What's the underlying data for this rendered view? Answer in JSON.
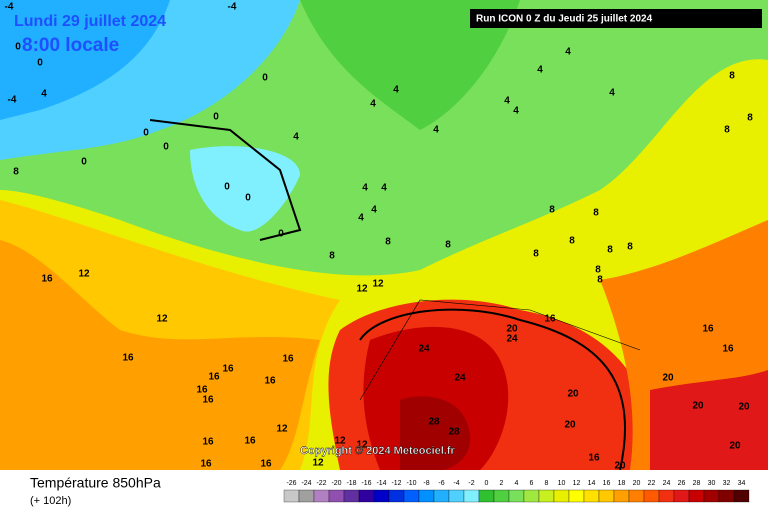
{
  "header": {
    "date": "Lundi 29 juillet 2024",
    "time": "8:00 locale",
    "run": "Run ICON 0 Z du Jeudi 25 juillet 2024"
  },
  "copyright": "Copyright © 2024 Meteociel.fr",
  "footer": {
    "title": "Température 850hPa",
    "lead": "(+ 102h)"
  },
  "contour_labels": [
    -4,
    -4,
    0,
    0,
    4,
    -4,
    0,
    0,
    0,
    0,
    0,
    8,
    0,
    0,
    0,
    4,
    4,
    4,
    4,
    4,
    4,
    4,
    4,
    4,
    4,
    4,
    4,
    4,
    8,
    8,
    8,
    8,
    8,
    8,
    8,
    8,
    8,
    8,
    8,
    8,
    8,
    8,
    12,
    12,
    12,
    12,
    16,
    16,
    16,
    16,
    16,
    16,
    16,
    16,
    16,
    16,
    16,
    16,
    16,
    16,
    16,
    16,
    24,
    24,
    20,
    24,
    20,
    20,
    20,
    20,
    20,
    20,
    20,
    28,
    28,
    12,
    12,
    12,
    12
  ],
  "scale": {
    "ticks": [
      -26,
      -24,
      -22,
      -20,
      -18,
      -16,
      -14,
      -12,
      -10,
      -8,
      -6,
      -4,
      -2,
      0,
      2,
      4,
      6,
      8,
      10,
      12,
      14,
      16,
      18,
      20,
      22,
      24,
      26,
      28,
      30,
      32,
      34
    ],
    "colors": [
      "#c8c8c8",
      "#a0a0a0",
      "#b080c0",
      "#9050b0",
      "#6030a0",
      "#3000a0",
      "#0000c8",
      "#0030e0",
      "#0060ff",
      "#0090ff",
      "#20b0ff",
      "#50d0ff",
      "#80f0ff",
      "#30c030",
      "#50d040",
      "#78e05a",
      "#a0e840",
      "#c8f020",
      "#e8f000",
      "#ffff00",
      "#ffe000",
      "#ffc800",
      "#ffa000",
      "#ff8000",
      "#ff5a00",
      "#f03010",
      "#e01818",
      "#c80000",
      "#a00000",
      "#800000",
      "#500000"
    ]
  }
}
